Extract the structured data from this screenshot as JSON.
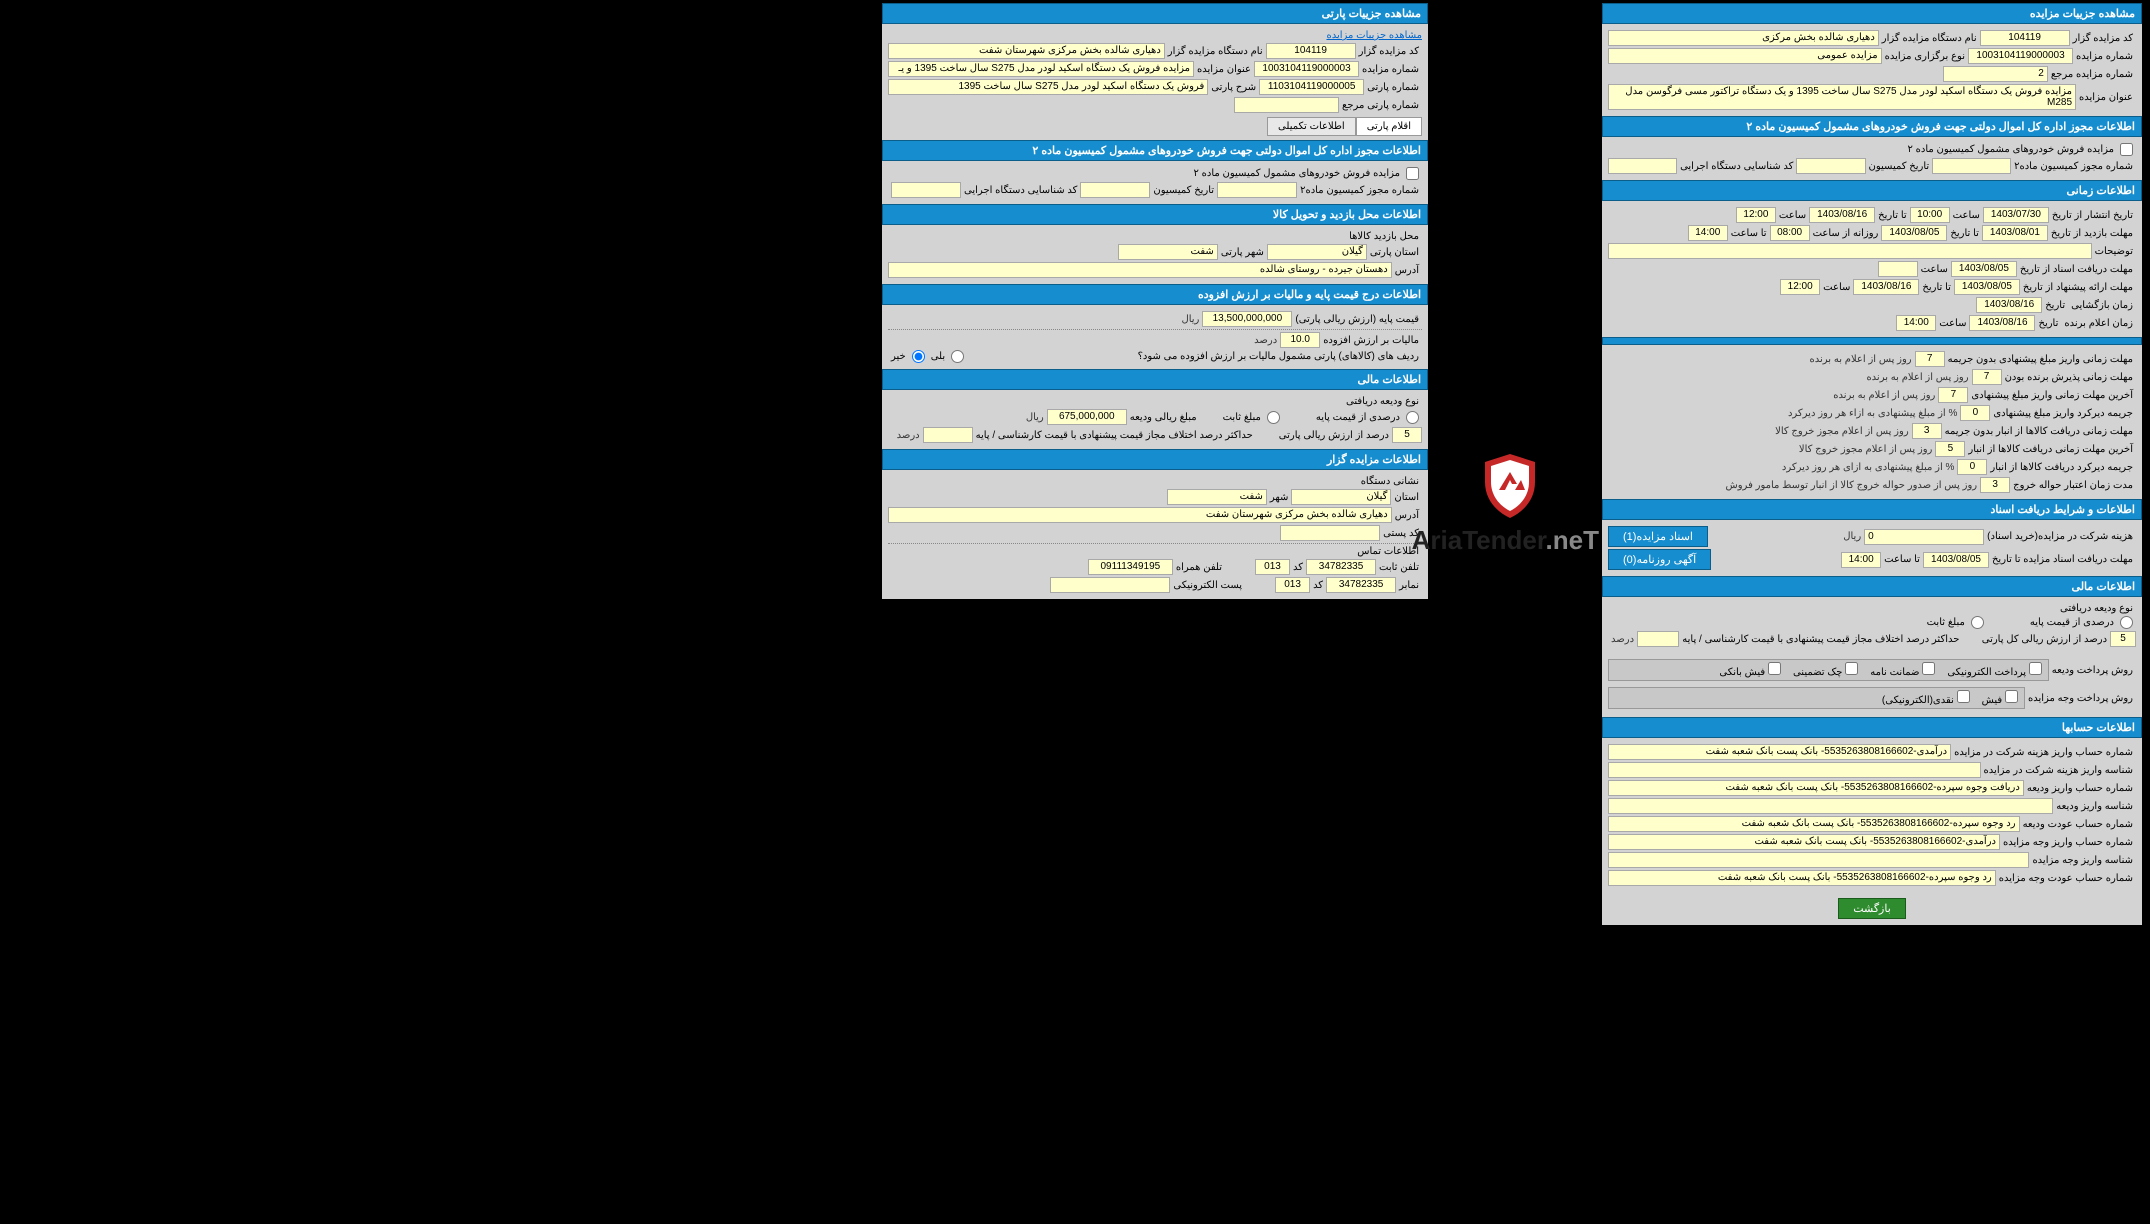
{
  "brand": {
    "name1": "AriaTender",
    "name2": ".neT",
    "shield_stroke": "#c62828",
    "shield_fill": "#fff"
  },
  "right": {
    "sec_auction_header": "مشاهده جزییات پارتی",
    "link_detail": "مشاهده جزییات مزایده",
    "row1": {
      "l1": "کد مزایده گزار",
      "v1": "104119",
      "l2": "نام دستگاه مزایده گزار",
      "v2": "دهیاری شالده بخش مرکزی شهرستان شفت"
    },
    "row2": {
      "l1": "شماره مزایده",
      "v1": "1003104119000003",
      "l2": "عنوان مزایده",
      "v2": "مزایده فروش یک دستگاه اسکید لودر مدل S275 سال ساخت 1395 و یـ"
    },
    "row3": {
      "l1": "شماره پارتی",
      "v1": "1103104119000005",
      "l2": "شرح پارتی",
      "v2": "فروش یک دستگاه اسکید لودر مدل S275 سال ساخت 1395"
    },
    "row4": {
      "l1": "شماره پارتی مرجع"
    },
    "tabs": {
      "t1": "اقلام پارتی",
      "t2": "اطلاعات تکمیلی"
    },
    "sec_authorize": "اطلاعات مجوز اداره کل اموال دولتی جهت فروش خودروهای مشمول کمیسیون ماده ۲",
    "auth": {
      "chk": "مزایده فروش خودروهای مشمول کمیسیون ماده ۲",
      "l1": "شماره مجوز کمیسیون ماده۲",
      "l2": "تاریخ کمیسیون",
      "l3": "کد شناسایی دستگاه اجرایی"
    },
    "sec_visit": "اطلاعات محل بازدید و تحویل کالا",
    "visit": {
      "l0": "محل بازدید کالاها",
      "l1": "استان پارتی",
      "v1": "گیلان",
      "l2": "شهر پارتی",
      "v2": "شفت",
      "l3": "آدرس",
      "v3": "دهستان جیرده - روستای شالده"
    },
    "sec_tax": "اطلاعات درج قیمت پایه و مالیات بر ارزش افزوده",
    "tax": {
      "l1": "قیمت پایه (ارزش ریالی پارتی)",
      "v1": "13,500,000,000",
      "u1": "ریال",
      "l2": "مالیات بر ارزش افزوده",
      "v2": "10.0",
      "u2": "درصد",
      "q": "ردیف های (کالاهای) پارتی مشمول مالیات بر ارزش افزوده می شود؟",
      "yes": "بلی",
      "no": "خیر"
    },
    "sec_fin": "اطلاعات مالی",
    "fin": {
      "l0": "نوع ودیعه دریافتی",
      "r1": "درصدی از قیمت پایه",
      "r2": "مبلغ ثابت",
      "l2": "مبلغ ریالی ودیعه",
      "v2": "675,000,000",
      "u2": "ریال",
      "v3": "5",
      "l3": "درصد از ارزش ریالی پارتی",
      "l4": "حداکثر درصد اختلاف مجاز قیمت پیشنهادی با قیمت کارشناسی / پایه",
      "u4": "درصد"
    },
    "sec_org": "اطلاعات مزایده گزار",
    "org": {
      "l0": "نشانی دستگاه",
      "l1": "استان",
      "v1": "گیلان",
      "l2": "شهر",
      "v2": "شفت",
      "l3": "آدرس",
      "v3": "دهیاری شالده بخش مرکزی شهرستان شفت",
      "l4": "کد پستی",
      "l5": "اطلاعات تماس",
      "lp": "تلفن ثابت",
      "vp": "34782335",
      "lc": "کد",
      "vc": "013",
      "lm": "تلفن همراه",
      "vm": "09111349195",
      "lf": "نمابر",
      "vf": "34782335",
      "lfc": "کد",
      "vfc": "013",
      "le": "پست الکترونیکی"
    }
  },
  "left": {
    "sec_auction_header": "مشاهده جزییات مزایده",
    "row1": {
      "l1": "کد مزایده گزار",
      "v1": "104119",
      "l2": "نام دستگاه مزایده گزار",
      "v2": "دهیاری شالده بخش مرکزی"
    },
    "row2": {
      "l1": "شماره مزایده",
      "v1": "1003104119000003",
      "l2": "نوع برگزاری مزایده",
      "v2": "مزایده عمومی"
    },
    "row3": {
      "l1": "شماره مزایده مرجع",
      "v1": "2"
    },
    "row4": {
      "l1": "عنوان مزایده",
      "v1": "مزایده فروش یک دستگاه اسکید لودر مدل S275 سال ساخت 1395 و یک دستگاه تراکتور مسی فرگوسن مدل M285"
    },
    "sec_authorize": "اطلاعات مجوز اداره کل اموال دولتی جهت فروش خودروهای مشمول کمیسیون ماده ۲",
    "auth": {
      "chk": "مزایده فروش خودروهای مشمول کمیسیون ماده ۲",
      "l1": "شماره مجوز کمیسیون ماده۲",
      "l2": "تاریخ کمیسیون",
      "l3": "کد شناسایی دستگاه اجرایی"
    },
    "sec_time": "اطلاعات زمانی",
    "time": {
      "l_pub": "تاریخ انتشار از تاریخ",
      "v_pub1": "1403/07/30",
      "l_time": "ساعت",
      "v_pubt": "10:00",
      "l_to": "تا تاریخ",
      "v_pub2": "1403/08/16",
      "v_pubt2": "12:00",
      "l_vis": "مهلت بازدید از تاریخ",
      "v_vis1": "1403/08/01",
      "l_daily": "روزانه از ساعت",
      "v_vist1": "08:00",
      "l_tot": "تا ساعت",
      "v_vist2": "14:00",
      "v_vis2": "1403/08/05",
      "l_desc": "توضیحات",
      "l_doc": "مهلت دریافت اسناد از تاریخ",
      "v_doc1": "1403/08/05",
      "l_bid": "مهلت ارائه پیشنهاد از تاریخ",
      "v_bid1": "1403/08/05",
      "v_bid2": "1403/08/16",
      "v_bidt": "12:00",
      "l_open": "زمان بازگشایی",
      "l_date": "تاریخ",
      "v_open": "1403/08/16",
      "l_win": "زمان اعلام برنده",
      "v_win": "1403/08/16",
      "v_wint": "14:00"
    },
    "sec_deadline_hdr": "",
    "deadlines": {
      "r1l": "مهلت زمانی واریز مبلغ پیشنهادی بدون جریمه",
      "r1v": "7",
      "r1s": "روز پس از اعلام به برنده",
      "r2l": "مهلت زمانی پذیرش برنده بودن",
      "r2v": "7",
      "r2s": "روز پس از اعلام به برنده",
      "r3l": "آخرین مهلت زمانی واریز مبلغ پیشنهادی",
      "r3v": "7",
      "r3s": "روز پس از اعلام به برنده",
      "r4l": "جریمه دیرکرد واریز مبلغ پیشنهادی",
      "r4v": "0",
      "r4s": "% از مبلغ پیشنهادی به ازاء هر روز دیرکرد",
      "r5l": "مهلت زمانی دریافت کالاها از انبار بدون جریمه",
      "r5v": "3",
      "r5s": "روز پس از اعلام مجوز خروج کالا",
      "r6l": "آخرین مهلت زمانی دریافت کالاها از انبار",
      "r6v": "5",
      "r6s": "روز پس از اعلام مجوز خروج کالا",
      "r7l": "جریمه دیرکرد دریافت کالاها از انبار",
      "r7v": "0",
      "r7s": "% از مبلغ پیشنهادی به ازای هر روز دیرکرد",
      "r8l": "مدت زمان اعتبار حواله خروج",
      "r8v": "3",
      "r8s": "روز پس از صدور حواله خروج کالا از انبار توسط مامور فروش"
    },
    "sec_docs": "اطلاعات و شرایط دریافت اسناد",
    "docs": {
      "l1": "هزینه شرکت در مزایده(خرید اسناد)",
      "v1": "0",
      "u1": "ریال",
      "btn1": "اسناد مزایده(1)",
      "btn2": "آگهی روزنامه(0)",
      "l2": "مهلت دریافت اسناد مزایده تا تاریخ",
      "v2": "1403/08/05",
      "lt": "تا ساعت",
      "vt": "14:00"
    },
    "sec_fin": "اطلاعات مالی",
    "fin": {
      "l0": "نوع ودیعه دریافتی",
      "r1": "درصدی از قیمت پایه",
      "r2": "مبلغ ثابت",
      "v3": "5",
      "l3": "درصد از ارزش ریالی کل پارتی",
      "l4": "حداکثر درصد اختلاف مجاز قیمت پیشنهادی با قیمت کارشناسی / پایه",
      "u4": "درصد",
      "lpay1": "روش پرداخت ودیعه",
      "c1": "پرداخت الکترونیکی",
      "c2": "ضمانت نامه",
      "c3": "چک تضمینی",
      "c4": "فیش بانکی",
      "lpay2": "روش پرداخت وجه مزایده",
      "c5": "فیش",
      "c6": "نقدی(الکترونیکی)"
    },
    "sec_acc": "اطلاعات حسابها",
    "accounts": {
      "l1": "شماره حساب واریز هزینه شرکت در مزایده",
      "v1": "درآمدی-5535263808166602- بانک پست بانک شعبه شفت",
      "l2": "شناسه واریز هزینه شرکت در مزایده",
      "l3": "شماره حساب واریز ودیعه",
      "v3": "دریافت وجوه سپرده-5535263808166602- بانک پست بانک شعبه شفت",
      "l4": "شناسه واریز ودیعه",
      "l5": "شماره حساب عودت ودیعه",
      "v5": "رد وجوه سپرده-5535263808166602- بانک پست بانک شعبه شفت",
      "l6": "شماره حساب واریز وجه مزایده",
      "v6": "درآمدی-5535263808166602- بانک پست بانک شعبه شفت",
      "l7": "شناسه واریز وجه مزایده",
      "l8": "شماره حساب عودت وجه مزایده",
      "v8": "رد وجوه سپرده-5535263808166602- بانک پست بانک شعبه شفت"
    },
    "back": "بازگشت"
  }
}
